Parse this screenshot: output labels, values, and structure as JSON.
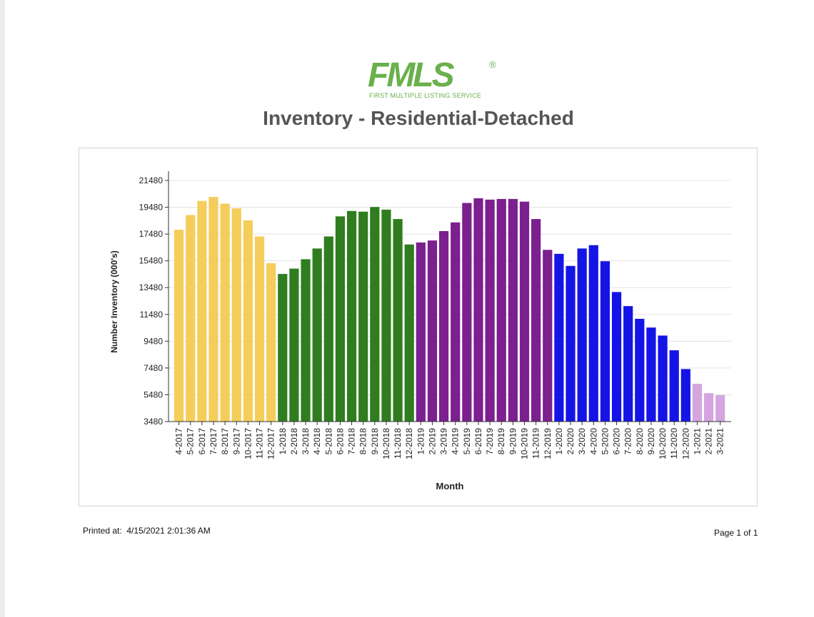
{
  "logo": {
    "main": "FMLS",
    "registered": "®",
    "subtitle": "FIRST MULTIPLE LISTING SERVICE"
  },
  "footer": {
    "printed_label": "Printed at:",
    "printed_at": "4/15/2021 2:01:36 AM",
    "page": "Page 1 of 1"
  },
  "chart_data": {
    "type": "bar",
    "title": "Inventory - Residential-Detached",
    "xlabel": "Month",
    "ylabel": "Number Inventory (000's)",
    "ylim": [
      3480,
      21480
    ],
    "yticks": [
      "21480",
      "19480",
      "17480",
      "15480",
      "13480",
      "11480",
      "9480",
      "7480",
      "5480",
      "3480"
    ],
    "grid": true,
    "colors": {
      "2017": "#f5cd5b",
      "2018": "#2f7d1f",
      "2019": "#7c1f8f",
      "2020": "#1414e6",
      "2021": "#d5a5e0"
    },
    "categories": [
      "4-2017",
      "5-2017",
      "6-2017",
      "7-2017",
      "8-2017",
      "9-2017",
      "10-2017",
      "11-2017",
      "12-2017",
      "1-2018",
      "2-2018",
      "3-2018",
      "4-2018",
      "5-2018",
      "6-2018",
      "7-2018",
      "8-2018",
      "9-2018",
      "10-2018",
      "11-2018",
      "12-2018",
      "1-2019",
      "2-2019",
      "3-2019",
      "4-2019",
      "5-2019",
      "6-2019",
      "7-2019",
      "8-2019",
      "9-2019",
      "10-2019",
      "11-2019",
      "12-2019",
      "1-2020",
      "2-2020",
      "3-2020",
      "4-2020",
      "5-2020",
      "6-2020",
      "7-2020",
      "8-2020",
      "9-2020",
      "10-2020",
      "11-2020",
      "12-2020",
      "1-2021",
      "2-2021",
      "3-2021"
    ],
    "values": [
      17800,
      18900,
      19950,
      20250,
      19750,
      19400,
      18500,
      17300,
      15300,
      14500,
      14900,
      15600,
      16400,
      17300,
      18800,
      19200,
      19150,
      19500,
      19300,
      18600,
      16700,
      16850,
      17000,
      17700,
      18350,
      19800,
      20150,
      20050,
      20100,
      20100,
      19900,
      18600,
      16300,
      16000,
      15100,
      16400,
      16650,
      15450,
      13150,
      12100,
      11150,
      10500,
      9900,
      8800,
      7400,
      6300,
      5600,
      5450
    ]
  }
}
